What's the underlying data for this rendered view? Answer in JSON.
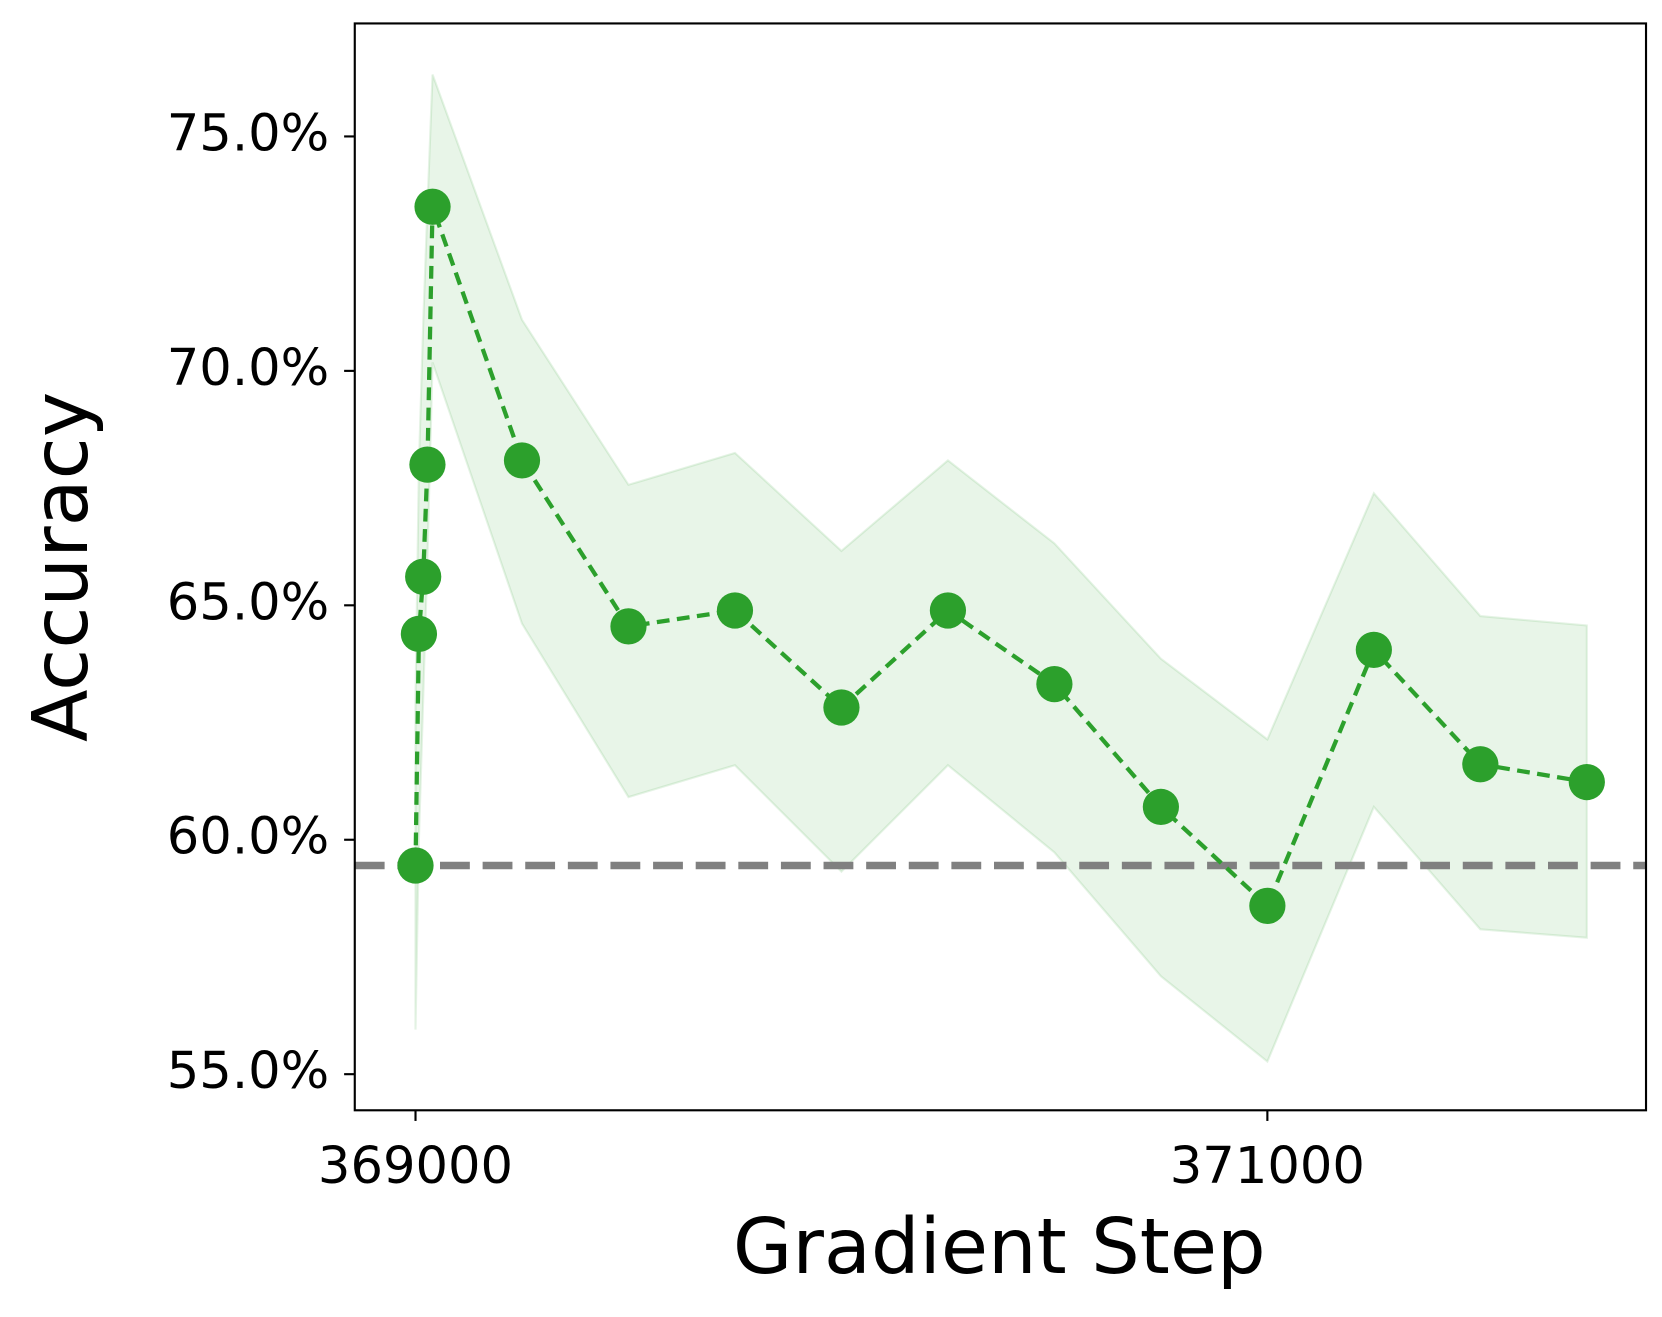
{
  "chart_data": {
    "type": "line",
    "x_label": "Gradient Step",
    "y_label": "Accuracy",
    "x": [
      369000,
      369008,
      369018,
      369028,
      369040,
      369250,
      369500,
      369750,
      370000,
      370250,
      370500,
      370750,
      371000,
      371250,
      371500,
      371750
    ],
    "series": [
      {
        "color": "#2ca02c",
        "values": [
          59.45,
          64.39,
          65.61,
          68.0,
          73.5,
          68.09,
          64.55,
          64.89,
          62.82,
          64.89,
          63.32,
          60.7,
          58.59,
          64.05,
          61.61,
          61.23
        ],
        "upper": [
          63.0,
          68.0,
          71.0,
          73.5,
          76.32,
          71.09,
          67.57,
          68.25,
          66.16,
          68.09,
          66.32,
          63.86,
          62.14,
          67.39,
          64.77,
          64.57
        ],
        "lower": [
          55.95,
          60.0,
          63.0,
          66.0,
          70.18,
          64.61,
          60.91,
          61.59,
          59.32,
          61.59,
          59.73,
          57.09,
          55.27,
          60.7,
          58.09,
          57.91
        ]
      }
    ],
    "hline": {
      "value": 59.45,
      "color": "#808080"
    },
    "xlim": [
      368857.4,
      371889
    ],
    "ylim": [
      54.23,
      77.41
    ],
    "xticks": [
      369000,
      371000
    ],
    "yticks": [
      {
        "value": 55,
        "label": "55.0%"
      },
      {
        "value": 60,
        "label": "60.0%"
      },
      {
        "value": 65,
        "label": "65.0%"
      },
      {
        "value": 70,
        "label": "70.0%"
      },
      {
        "value": 75,
        "label": "75.0%"
      }
    ],
    "grid": false
  }
}
